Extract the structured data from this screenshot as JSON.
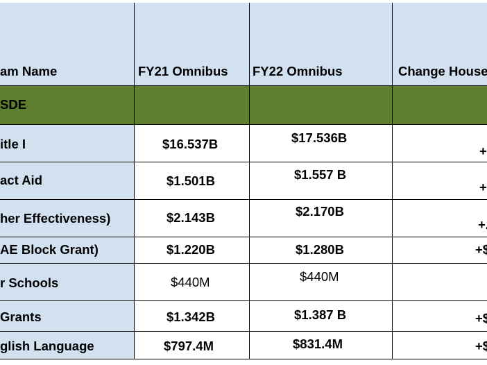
{
  "header": {
    "col_program": "am Name",
    "col_fy21": "FY21 Omnibus",
    "col_fy22": "FY22 Omnibus",
    "col_change": "Change House"
  },
  "section": {
    "label": "SDE"
  },
  "rows": [
    {
      "program": "itle I",
      "fy21": "$16.537B",
      "fy22": "$17.536B",
      "change": "+"
    },
    {
      "program": "act Aid",
      "fy21": "$1.501B",
      "fy22": "$1.557 B",
      "change": "+"
    },
    {
      "program": "her Effectiveness)",
      "fy21": "$2.143B",
      "fy22": "$2.170B",
      "change": "+."
    },
    {
      "program": "AE Block Grant)",
      "fy21": "$1.220B",
      "fy22": "$1.280B",
      "change": "+$"
    },
    {
      "program": "r Schools",
      "fy21": "$440M",
      "fy22": "$440M",
      "change": ""
    },
    {
      "program": "Grants",
      "fy21": "$1.342B",
      "fy22": "$1.387 B",
      "change": "+$"
    },
    {
      "program": "glish Language",
      "fy21": "$797.4M",
      "fy22": "$831.4M",
      "change": "+$"
    }
  ]
}
